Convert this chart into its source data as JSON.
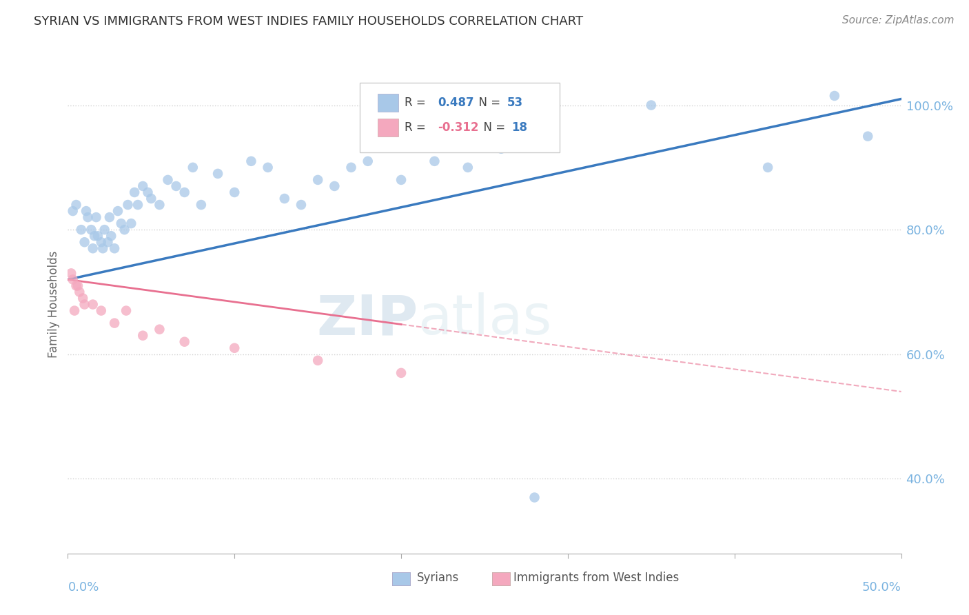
{
  "title": "SYRIAN VS IMMIGRANTS FROM WEST INDIES FAMILY HOUSEHOLDS CORRELATION CHART",
  "source": "Source: ZipAtlas.com",
  "xlabel_syrians": "Syrians",
  "xlabel_west_indies": "Immigrants from West Indies",
  "ylabel": "Family Households",
  "xmin": 0.0,
  "xmax": 50.0,
  "ymin": 28.0,
  "ymax": 108.0,
  "yticks": [
    40.0,
    60.0,
    80.0,
    100.0
  ],
  "xticks": [
    0.0,
    10.0,
    20.0,
    30.0,
    40.0,
    50.0
  ],
  "blue_R": 0.487,
  "blue_N": 53,
  "pink_R": -0.312,
  "pink_N": 18,
  "blue_color": "#a8c8e8",
  "pink_color": "#f4a8be",
  "blue_line_color": "#3a7abf",
  "pink_line_color": "#e87090",
  "background_color": "#ffffff",
  "grid_color": "#cccccc",
  "watermark_zip": "ZIP",
  "watermark_atlas": "atlas",
  "title_color": "#333333",
  "axis_label_color": "#666666",
  "right_tick_color": "#7ab3e0",
  "syrians_x": [
    0.3,
    0.5,
    0.8,
    1.0,
    1.2,
    1.4,
    1.5,
    1.6,
    1.7,
    1.8,
    2.0,
    2.1,
    2.2,
    2.4,
    2.5,
    2.6,
    2.8,
    3.0,
    3.2,
    3.4,
    3.6,
    4.0,
    4.2,
    4.5,
    4.8,
    5.0,
    5.5,
    6.0,
    6.5,
    7.0,
    7.5,
    8.0,
    9.0,
    10.0,
    11.0,
    12.0,
    13.0,
    14.0,
    15.0,
    16.0,
    17.0,
    18.0,
    20.0,
    22.0,
    24.0,
    26.0,
    28.0,
    35.0,
    42.0,
    46.0,
    48.0,
    3.8,
    1.1
  ],
  "syrians_y": [
    83.0,
    84.0,
    80.0,
    78.0,
    82.0,
    80.0,
    77.0,
    79.0,
    82.0,
    79.0,
    78.0,
    77.0,
    80.0,
    78.0,
    82.0,
    79.0,
    77.0,
    83.0,
    81.0,
    80.0,
    84.0,
    86.0,
    84.0,
    87.0,
    86.0,
    85.0,
    84.0,
    88.0,
    87.0,
    86.0,
    90.0,
    84.0,
    89.0,
    86.0,
    91.0,
    90.0,
    85.0,
    84.0,
    88.0,
    87.0,
    90.0,
    91.0,
    88.0,
    91.0,
    90.0,
    93.0,
    37.0,
    100.0,
    90.0,
    101.5,
    95.0,
    81.0,
    83.0
  ],
  "west_indies_x": [
    0.2,
    0.3,
    0.5,
    0.7,
    0.9,
    1.0,
    1.5,
    2.0,
    2.8,
    3.5,
    4.5,
    5.5,
    7.0,
    10.0,
    15.0,
    20.0,
    0.6,
    0.4
  ],
  "west_indies_y": [
    73.0,
    72.0,
    71.0,
    70.0,
    69.0,
    68.0,
    68.0,
    67.0,
    65.0,
    67.0,
    63.0,
    64.0,
    62.0,
    61.0,
    59.0,
    57.0,
    71.0,
    67.0
  ],
  "blue_line_x0": 0.0,
  "blue_line_y0": 72.0,
  "blue_line_x1": 50.0,
  "blue_line_y1": 101.0,
  "pink_line_x0": 0.0,
  "pink_line_y0": 72.0,
  "pink_line_x1": 50.0,
  "pink_line_y1": 54.0,
  "pink_solid_end_x": 20.0
}
